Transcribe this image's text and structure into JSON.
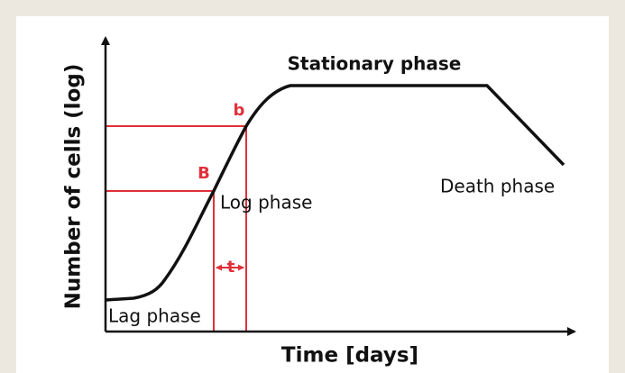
{
  "axes": {
    "x_label": "Time [days]",
    "y_label": "Number of cells (log)"
  },
  "phases": [
    "Lag phase",
    "Log phase",
    "Stationary phase",
    "Death phase"
  ],
  "markers": {
    "upper": "b",
    "lower": "B",
    "interval": "t"
  }
}
